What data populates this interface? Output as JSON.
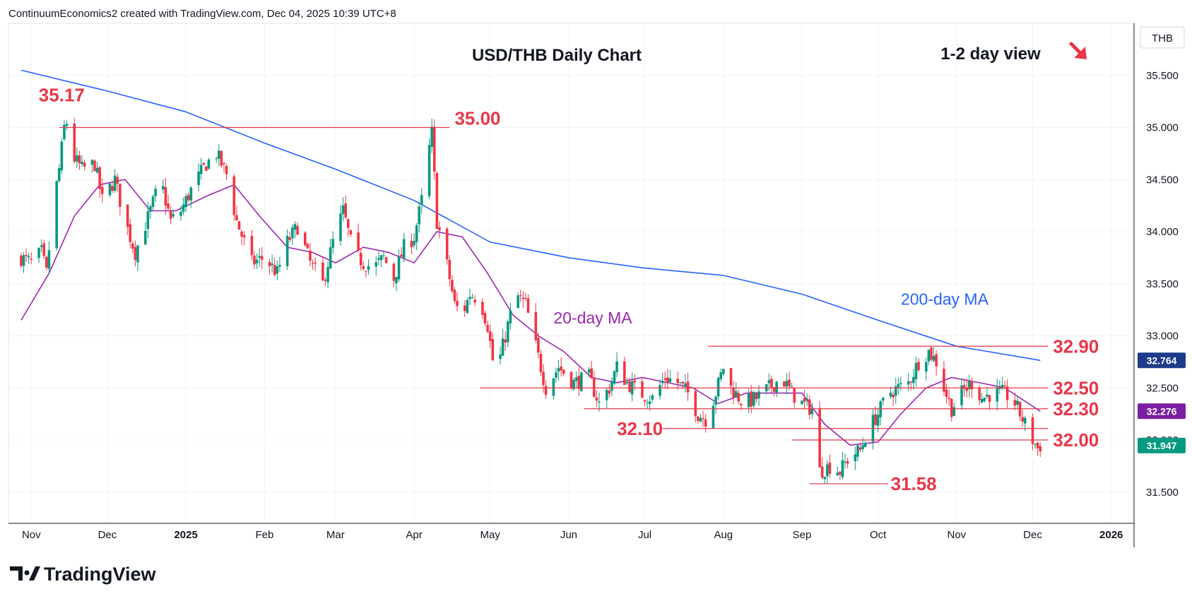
{
  "header": {
    "attribution": "ContinuumEconomics2 created with TradingView.com, Dec 04, 2025 10:39 UTC+8"
  },
  "logo": {
    "text": "TradingView"
  },
  "colors": {
    "up": "#089981",
    "down": "#f23645",
    "ma20": "#9c27b0",
    "ma200": "#2962ff",
    "levels": "#e8374a",
    "tag200": "#1e3a8a",
    "tag20": "#7b1fa2",
    "tagLast": "#089981"
  },
  "chart_data": {
    "type": "candlestick",
    "title": "USD/THB Daily Chart",
    "subtitle": "1-2 day view",
    "direction_arrow": "down-right",
    "currency_label": "THB",
    "x_tick_labels": [
      "Nov",
      "Dec",
      "2025",
      "Feb",
      "Mar",
      "Apr",
      "May",
      "Jun",
      "Jul",
      "Aug",
      "Sep",
      "Oct",
      "Nov",
      "Dec",
      "2026"
    ],
    "y_tick_labels": [
      "35.500",
      "35.000",
      "34.500",
      "34.000",
      "33.500",
      "33.000",
      "32.500",
      "32.000",
      "31.500"
    ],
    "y_ticks": [
      35.5,
      35.0,
      34.5,
      34.0,
      33.5,
      33.0,
      32.5,
      32.0,
      31.5
    ],
    "ylim": [
      31.2,
      36.0
    ],
    "grid": true,
    "close_path": [
      [
        "2024-10-28",
        33.75
      ],
      [
        "2024-11-01",
        33.7
      ],
      [
        "2024-11-05",
        33.8
      ],
      [
        "2024-11-07",
        33.6
      ],
      [
        "2024-11-10",
        34.3
      ],
      [
        "2024-11-12",
        34.6
      ],
      [
        "2024-11-14",
        35.0
      ],
      [
        "2024-11-15",
        35.05
      ],
      [
        "2024-11-18",
        34.7
      ],
      [
        "2024-11-21",
        34.6
      ],
      [
        "2024-11-26",
        34.65
      ],
      [
        "2024-11-29",
        34.3
      ],
      [
        "2024-12-04",
        34.5
      ],
      [
        "2024-12-08",
        34.1
      ],
      [
        "2024-12-12",
        33.8
      ],
      [
        "2024-12-18",
        34.2
      ],
      [
        "2024-12-22",
        34.5
      ],
      [
        "2024-12-26",
        34.1
      ],
      [
        "2024-12-30",
        34.2
      ],
      [
        "2025-01-03",
        34.4
      ],
      [
        "2025-01-09",
        34.65
      ],
      [
        "2025-01-13",
        34.75
      ],
      [
        "2025-01-17",
        34.55
      ],
      [
        "2025-01-21",
        34.1
      ],
      [
        "2025-01-27",
        33.7
      ],
      [
        "2025-02-01",
        33.75
      ],
      [
        "2025-02-06",
        33.6
      ],
      [
        "2025-02-10",
        33.9
      ],
      [
        "2025-02-14",
        34.05
      ],
      [
        "2025-02-19",
        33.7
      ],
      [
        "2025-02-24",
        33.5
      ],
      [
        "2025-02-28",
        33.9
      ],
      [
        "2025-03-04",
        34.2
      ],
      [
        "2025-03-08",
        33.8
      ],
      [
        "2025-03-12",
        33.7
      ],
      [
        "2025-03-16",
        33.65
      ],
      [
        "2025-03-20",
        33.75
      ],
      [
        "2025-03-24",
        33.55
      ],
      [
        "2025-03-28",
        33.85
      ],
      [
        "2025-04-01",
        33.95
      ],
      [
        "2025-04-04",
        34.3
      ],
      [
        "2025-04-07",
        34.8
      ],
      [
        "2025-04-08",
        34.95
      ],
      [
        "2025-04-10",
        34.1
      ],
      [
        "2025-04-13",
        33.8
      ],
      [
        "2025-04-17",
        33.3
      ],
      [
        "2025-04-20",
        33.2
      ],
      [
        "2025-04-23",
        33.4
      ],
      [
        "2025-04-27",
        33.35
      ],
      [
        "2025-04-30",
        33.1
      ],
      [
        "2025-05-03",
        32.6
      ],
      [
        "2025-05-07",
        33.0
      ],
      [
        "2025-05-11",
        33.4
      ],
      [
        "2025-05-15",
        33.3
      ],
      [
        "2025-05-19",
        32.9
      ],
      [
        "2025-05-23",
        32.5
      ],
      [
        "2025-05-28",
        32.7
      ],
      [
        "2025-06-03",
        32.55
      ],
      [
        "2025-06-09",
        32.6
      ],
      [
        "2025-06-13",
        32.35
      ],
      [
        "2025-06-17",
        32.5
      ],
      [
        "2025-06-20",
        32.7
      ],
      [
        "2025-06-24",
        32.55
      ],
      [
        "2025-06-29",
        32.45
      ],
      [
        "2025-07-04",
        32.4
      ],
      [
        "2025-07-09",
        32.6
      ],
      [
        "2025-07-14",
        32.55
      ],
      [
        "2025-07-18",
        32.45
      ],
      [
        "2025-07-22",
        32.25
      ],
      [
        "2025-07-25",
        32.2
      ],
      [
        "2025-07-29",
        32.45
      ],
      [
        "2025-08-01",
        32.7
      ],
      [
        "2025-08-04",
        32.5
      ],
      [
        "2025-08-09",
        32.35
      ],
      [
        "2025-08-14",
        32.4
      ],
      [
        "2025-08-19",
        32.5
      ],
      [
        "2025-08-24",
        32.6
      ],
      [
        "2025-08-28",
        32.45
      ],
      [
        "2025-09-01",
        32.35
      ],
      [
        "2025-09-05",
        32.3
      ],
      [
        "2025-09-08",
        31.7
      ],
      [
        "2025-09-12",
        31.75
      ],
      [
        "2025-09-16",
        31.7
      ],
      [
        "2025-09-20",
        31.85
      ],
      [
        "2025-09-24",
        31.9
      ],
      [
        "2025-09-27",
        32.1
      ],
      [
        "2025-10-01",
        32.25
      ],
      [
        "2025-10-05",
        32.45
      ],
      [
        "2025-10-09",
        32.5
      ],
      [
        "2025-10-13",
        32.55
      ],
      [
        "2025-10-17",
        32.75
      ],
      [
        "2025-10-21",
        32.85
      ],
      [
        "2025-10-24",
        32.75
      ],
      [
        "2025-10-27",
        32.5
      ],
      [
        "2025-10-30",
        32.3
      ],
      [
        "2025-11-03",
        32.45
      ],
      [
        "2025-11-07",
        32.55
      ],
      [
        "2025-11-11",
        32.4
      ],
      [
        "2025-11-15",
        32.45
      ],
      [
        "2025-11-19",
        32.45
      ],
      [
        "2025-11-23",
        32.4
      ],
      [
        "2025-11-27",
        32.2
      ],
      [
        "2025-12-01",
        32.0
      ],
      [
        "2025-12-03",
        31.92
      ],
      [
        "2025-12-04",
        31.947
      ]
    ],
    "ma200_path": [
      [
        "2024-10-28",
        35.55
      ],
      [
        "2024-12-01",
        35.35
      ],
      [
        "2025-01-01",
        35.15
      ],
      [
        "2025-02-01",
        34.85
      ],
      [
        "2025-03-01",
        34.6
      ],
      [
        "2025-04-01",
        34.3
      ],
      [
        "2025-05-01",
        33.9
      ],
      [
        "2025-06-01",
        33.75
      ],
      [
        "2025-07-01",
        33.65
      ],
      [
        "2025-08-01",
        33.58
      ],
      [
        "2025-09-01",
        33.4
      ],
      [
        "2025-10-01",
        33.15
      ],
      [
        "2025-11-01",
        32.9
      ],
      [
        "2025-12-04",
        32.764
      ]
    ],
    "ma20_path": [
      [
        "2024-10-28",
        33.15
      ],
      [
        "2024-11-08",
        33.6
      ],
      [
        "2024-11-18",
        34.15
      ],
      [
        "2024-11-28",
        34.45
      ],
      [
        "2024-12-08",
        34.5
      ],
      [
        "2024-12-18",
        34.2
      ],
      [
        "2024-12-28",
        34.2
      ],
      [
        "2025-01-10",
        34.35
      ],
      [
        "2025-01-20",
        34.45
      ],
      [
        "2025-01-30",
        34.15
      ],
      [
        "2025-02-10",
        33.85
      ],
      [
        "2025-02-20",
        33.8
      ],
      [
        "2025-03-01",
        33.7
      ],
      [
        "2025-03-12",
        33.85
      ],
      [
        "2025-03-22",
        33.8
      ],
      [
        "2025-04-01",
        33.7
      ],
      [
        "2025-04-10",
        34.0
      ],
      [
        "2025-04-20",
        33.95
      ],
      [
        "2025-04-30",
        33.6
      ],
      [
        "2025-05-10",
        33.2
      ],
      [
        "2025-05-20",
        33.0
      ],
      [
        "2025-05-30",
        32.85
      ],
      [
        "2025-06-10",
        32.6
      ],
      [
        "2025-06-20",
        32.55
      ],
      [
        "2025-06-30",
        32.6
      ],
      [
        "2025-07-10",
        32.55
      ],
      [
        "2025-07-20",
        32.5
      ],
      [
        "2025-07-30",
        32.35
      ],
      [
        "2025-08-10",
        32.45
      ],
      [
        "2025-08-20",
        32.45
      ],
      [
        "2025-09-01",
        32.45
      ],
      [
        "2025-09-10",
        32.15
      ],
      [
        "2025-09-20",
        31.95
      ],
      [
        "2025-10-01",
        31.98
      ],
      [
        "2025-10-10",
        32.25
      ],
      [
        "2025-10-20",
        32.5
      ],
      [
        "2025-10-30",
        32.6
      ],
      [
        "2025-11-10",
        32.55
      ],
      [
        "2025-11-20",
        32.5
      ],
      [
        "2025-12-04",
        32.276
      ]
    ],
    "levels": [
      {
        "label": "35.17",
        "value": 35.0,
        "from": "2024-11-12",
        "to": "2025-04-15",
        "marker": "35.17",
        "marker_date": "2024-11-13",
        "marker_value": 35.17,
        "label_value": "35.00",
        "label_at": "2025-04-17"
      },
      {
        "label": "32.90",
        "value": 32.9,
        "from": "2025-07-26",
        "to": "2025-12-07",
        "label_at": "2025-12-09"
      },
      {
        "label": "32.50",
        "value": 32.5,
        "from": "2025-04-27",
        "to": "2025-12-07",
        "label_at": "2025-12-09"
      },
      {
        "label": "32.30",
        "value": 32.3,
        "from": "2025-06-07",
        "to": "2025-12-07",
        "label_at": "2025-12-09"
      },
      {
        "label": "32.10",
        "value": 32.11,
        "from": "2025-07-08",
        "to": "2025-12-07",
        "label_at": "2025-06-20",
        "label_align": "left"
      },
      {
        "label": "32.00",
        "value": 32.0,
        "from": "2025-08-28",
        "to": "2025-12-07",
        "label_at": "2025-12-09"
      },
      {
        "label": "31.58",
        "value": 31.58,
        "from": "2025-09-04",
        "to": "2025-10-05",
        "label_at": "2025-10-06"
      }
    ],
    "series": [
      {
        "name": "200-day MA",
        "label_at": "2025-10-10",
        "label_value": 33.3
      },
      {
        "name": "20-day MA",
        "label_at": "2025-05-26",
        "label_value": 33.12
      }
    ],
    "price_tags": [
      {
        "text": "32.764",
        "value": 32.764,
        "kind": "ma200"
      },
      {
        "text": "32.276",
        "value": 32.276,
        "kind": "ma20"
      },
      {
        "text": "31.947",
        "value": 31.947,
        "kind": "last"
      }
    ]
  }
}
